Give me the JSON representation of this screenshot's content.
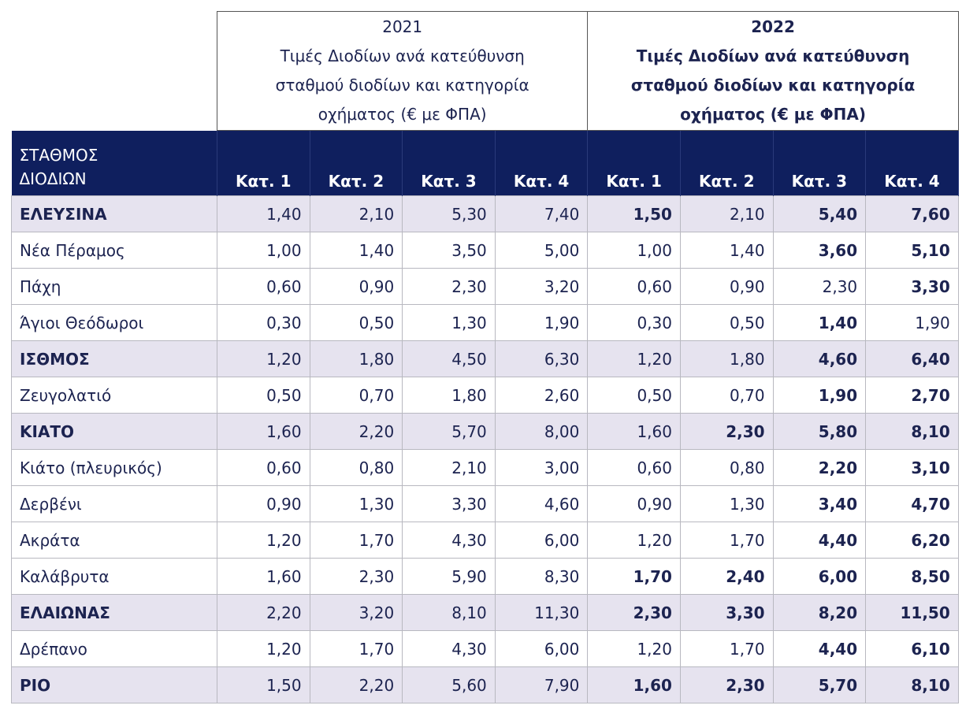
{
  "table": {
    "groups": [
      {
        "year": "2021",
        "title": "Τιμές Διοδίων ανά κατεύθυνση σταθμού διοδίων και κατηγορία οχήματος (€ με ΦΠΑ)"
      },
      {
        "year": "2022",
        "title": "Τιμές Διοδίων ανά κατεύθυνση σταθμού διοδίων και κατηγορία οχήματος (€ με ΦΠΑ)"
      }
    ],
    "station_header": "ΣΤΑΘΜΟΣ ΔΙΟΔΙΩΝ",
    "columns": [
      "Κατ. 1",
      "Κατ. 2",
      "Κατ. 3",
      "Κατ. 4",
      "Κατ. 1",
      "Κατ. 2",
      "Κατ. 3",
      "Κατ. 4"
    ],
    "rows": [
      [
        "ΕΛΕΥΣΙΝΑ",
        "1,40",
        "2,10",
        "5,30",
        "7,40",
        "1,50",
        "2,10",
        "5,40",
        "7,60"
      ],
      [
        "Νέα Πέραμος",
        "1,00",
        "1,40",
        "3,50",
        "5,00",
        "1,00",
        "1,40",
        "3,60",
        "5,10"
      ],
      [
        "Πάχη",
        "0,60",
        "0,90",
        "2,30",
        "3,20",
        "0,60",
        "0,90",
        "2,30",
        "3,30"
      ],
      [
        "Άγιοι Θεόδωροι",
        "0,30",
        "0,50",
        "1,30",
        "1,90",
        "0,30",
        "0,50",
        "1,40",
        "1,90"
      ],
      [
        "ΙΣΘΜΟΣ",
        "1,20",
        "1,80",
        "4,50",
        "6,30",
        "1,20",
        "1,80",
        "4,60",
        "6,40"
      ],
      [
        "Ζευγολατιό",
        "0,50",
        "0,70",
        "1,80",
        "2,60",
        "0,50",
        "0,70",
        "1,90",
        "2,70"
      ],
      [
        "ΚΙΑΤΟ",
        "1,60",
        "2,20",
        "5,70",
        "8,00",
        "1,60",
        "2,30",
        "5,80",
        "8,10"
      ],
      [
        "Κιάτο (πλευρικός)",
        "0,60",
        "0,80",
        "2,10",
        "3,00",
        "0,60",
        "0,80",
        "2,20",
        "3,10"
      ],
      [
        "Δερβένι",
        "0,90",
        "1,30",
        "3,30",
        "4,60",
        "0,90",
        "1,30",
        "3,40",
        "4,70"
      ],
      [
        "Ακράτα",
        "1,20",
        "1,70",
        "4,30",
        "6,00",
        "1,20",
        "1,70",
        "4,40",
        "6,20"
      ],
      [
        "Καλάβρυτα",
        "1,60",
        "2,30",
        "5,90",
        "8,30",
        "1,70",
        "2,40",
        "6,00",
        "8,50"
      ],
      [
        "ΕΛΑΙΩΝΑΣ",
        "2,20",
        "3,20",
        "8,10",
        "11,30",
        "2,30",
        "3,30",
        "8,20",
        "11,50"
      ],
      [
        "Δρέπανο",
        "1,20",
        "1,70",
        "4,30",
        "6,00",
        "1,20",
        "1,70",
        "4,40",
        "6,10"
      ],
      [
        "ΡΙΟ",
        "1,50",
        "2,20",
        "5,60",
        "7,90",
        "1,60",
        "2,30",
        "5,70",
        "8,10"
      ]
    ]
  }
}
